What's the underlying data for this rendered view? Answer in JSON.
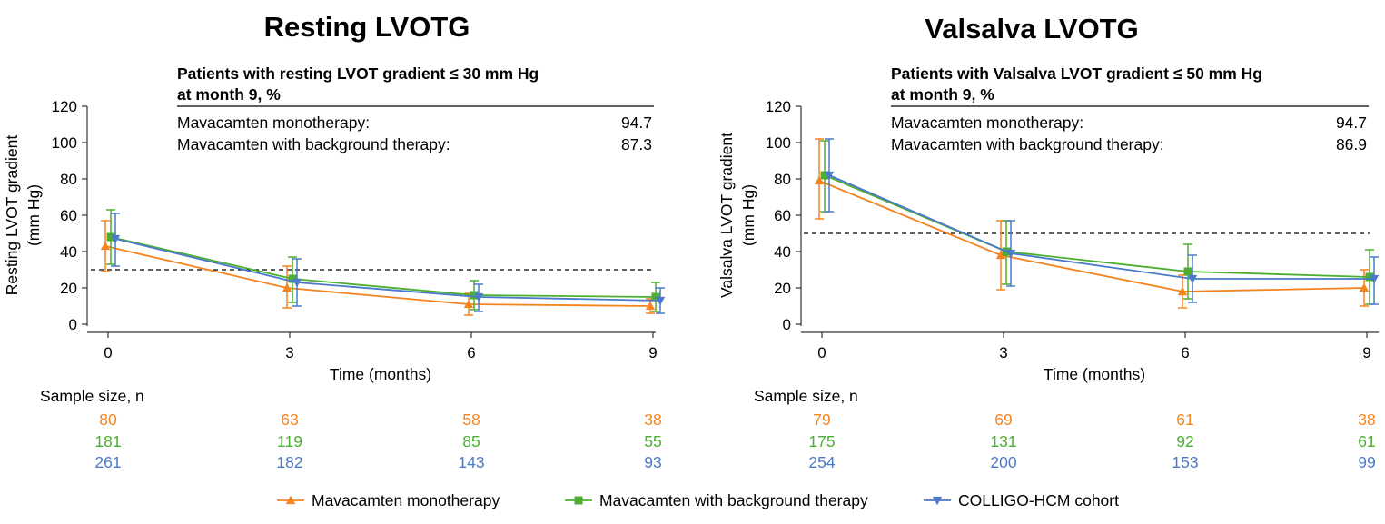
{
  "colors": {
    "monotherapy": "#f5841f",
    "background": "#4caf32",
    "colligo": "#4a7ac9",
    "axis": "#333333"
  },
  "legend": [
    {
      "key": "monotherapy",
      "label": "Mavacamten monotherapy",
      "marker": "triangle-up"
    },
    {
      "key": "background",
      "label": "Mavacamten with background therapy",
      "marker": "square"
    },
    {
      "key": "colligo",
      "label": "COLLIGO-HCM cohort",
      "marker": "triangle-down"
    }
  ],
  "chart_data": [
    {
      "type": "line",
      "title": "Resting LVOTG",
      "xlabel": "Time (months)",
      "ylabel_line1": "Resting LVOT gradient",
      "ylabel_line2": "(mm Hg)",
      "x": [
        0,
        3,
        6,
        9
      ],
      "ylim": [
        0,
        120
      ],
      "yticks": [
        0,
        20,
        40,
        60,
        80,
        100,
        120
      ],
      "threshold": 30,
      "series": [
        {
          "key": "monotherapy",
          "name": "Mavacamten monotherapy",
          "values": [
            43,
            20,
            11,
            10
          ],
          "lower": [
            29,
            9,
            5,
            6
          ],
          "upper": [
            57,
            32,
            17,
            14
          ]
        },
        {
          "key": "background",
          "name": "Mavacamten with background therapy",
          "values": [
            48,
            25,
            16,
            15
          ],
          "lower": [
            33,
            12,
            8,
            7
          ],
          "upper": [
            63,
            37,
            24,
            23
          ]
        },
        {
          "key": "colligo",
          "name": "COLLIGO-HCM cohort",
          "values": [
            47,
            23,
            15,
            13
          ],
          "lower": [
            32,
            10,
            7,
            6
          ],
          "upper": [
            61,
            36,
            22,
            20
          ]
        }
      ],
      "inset": {
        "heading_line1": "Patients with resting LVOT gradient ≤ 30 mm Hg",
        "heading_line2": "at month 9, %",
        "rows": [
          {
            "label": "Mavacamten monotherapy:",
            "value": "94.7"
          },
          {
            "label": "Mavacamten with background therapy:",
            "value": "87.3"
          }
        ]
      },
      "sample_size_label": "Sample size, n",
      "sample_sizes": {
        "monotherapy": [
          "80",
          "63",
          "58",
          "38"
        ],
        "background": [
          "181",
          "119",
          "85",
          "55"
        ],
        "colligo": [
          "261",
          "182",
          "143",
          "93"
        ]
      }
    },
    {
      "type": "line",
      "title": "Valsalva LVOTG",
      "xlabel": "Time (months)",
      "ylabel_line1": "Valsalva LVOT gradient",
      "ylabel_line2": "(mm Hg)",
      "x": [
        0,
        3,
        6,
        9
      ],
      "ylim": [
        0,
        120
      ],
      "yticks": [
        0,
        20,
        40,
        60,
        80,
        100,
        120
      ],
      "threshold": 50,
      "series": [
        {
          "key": "monotherapy",
          "name": "Mavacamten monotherapy",
          "values": [
            79,
            38,
            18,
            20
          ],
          "lower": [
            58,
            19,
            9,
            10
          ],
          "upper": [
            102,
            57,
            27,
            30
          ]
        },
        {
          "key": "background",
          "name": "Mavacamten with background therapy",
          "values": [
            82,
            40,
            29,
            26
          ],
          "lower": [
            62,
            22,
            14,
            11
          ],
          "upper": [
            101,
            57,
            44,
            41
          ]
        },
        {
          "key": "colligo",
          "name": "COLLIGO-HCM cohort",
          "values": [
            82,
            39,
            25,
            25
          ],
          "lower": [
            62,
            21,
            12,
            11
          ],
          "upper": [
            102,
            57,
            38,
            37
          ]
        }
      ],
      "inset": {
        "heading_line1": "Patients with Valsalva LVOT gradient ≤ 50 mm Hg",
        "heading_line2": "at month 9, %",
        "rows": [
          {
            "label": "Mavacamten monotherapy:",
            "value": "94.7"
          },
          {
            "label": "Mavacamten with background therapy:",
            "value": "86.9"
          }
        ]
      },
      "sample_size_label": "Sample size, n",
      "sample_sizes": {
        "monotherapy": [
          "79",
          "69",
          "61",
          "38"
        ],
        "background": [
          "175",
          "131",
          "92",
          "61"
        ],
        "colligo": [
          "254",
          "200",
          "153",
          "99"
        ]
      }
    }
  ]
}
